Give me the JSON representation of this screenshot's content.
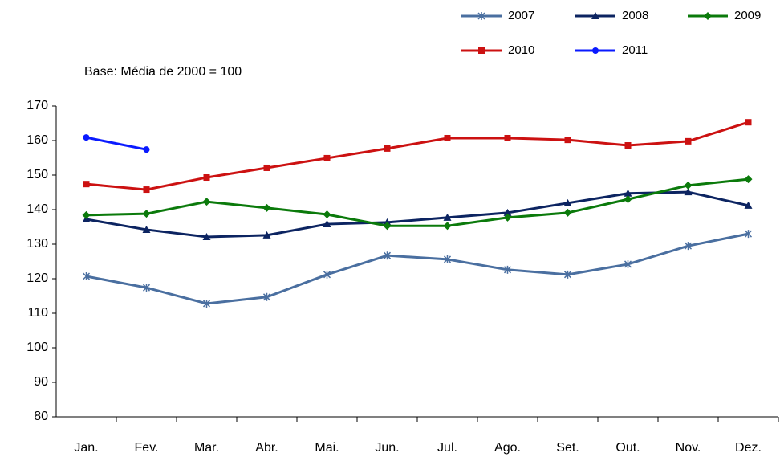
{
  "chart_data": {
    "type": "line",
    "subtitle": "Base: Média de 2000 = 100",
    "categories": [
      "Jan.",
      "Fev.",
      "Mar.",
      "Abr.",
      "Mai.",
      "Jun.",
      "Jul.",
      "Ago.",
      "Set.",
      "Out.",
      "Nov.",
      "Dez."
    ],
    "series": [
      {
        "name": "2007",
        "color": "#4a6fa0",
        "marker": "star",
        "values": [
          120.7,
          117.4,
          112.8,
          114.7,
          121.2,
          126.7,
          125.6,
          122.6,
          121.2,
          124.2,
          129.5,
          133
        ]
      },
      {
        "name": "2008",
        "color": "#0c2461",
        "marker": "triangle",
        "values": [
          137.2,
          134.2,
          132.1,
          132.6,
          135.8,
          136.3,
          137.7,
          139.1,
          141.9,
          144.7,
          145.1,
          141.2
        ]
      },
      {
        "name": "2009",
        "color": "#0b7a0b",
        "marker": "diamond",
        "values": [
          138.4,
          138.8,
          142.3,
          140.5,
          138.6,
          135.3,
          135.3,
          137.7,
          139.1,
          143,
          147,
          148.8
        ]
      },
      {
        "name": "2010",
        "color": "#cc1111",
        "marker": "square",
        "values": [
          147.4,
          145.8,
          149.3,
          152.1,
          154.9,
          157.7,
          160.7,
          160.7,
          160.2,
          158.6,
          159.8,
          165.3
        ]
      },
      {
        "name": "2011",
        "color": "#0a1aff",
        "marker": "circle",
        "values": [
          160.9,
          157.4,
          null,
          null,
          null,
          null,
          null,
          null,
          null,
          null,
          null,
          null
        ]
      }
    ],
    "ylim": [
      80,
      170
    ],
    "yticks": [
      80,
      90,
      100,
      110,
      120,
      130,
      140,
      150,
      160,
      170
    ],
    "grid": false
  }
}
